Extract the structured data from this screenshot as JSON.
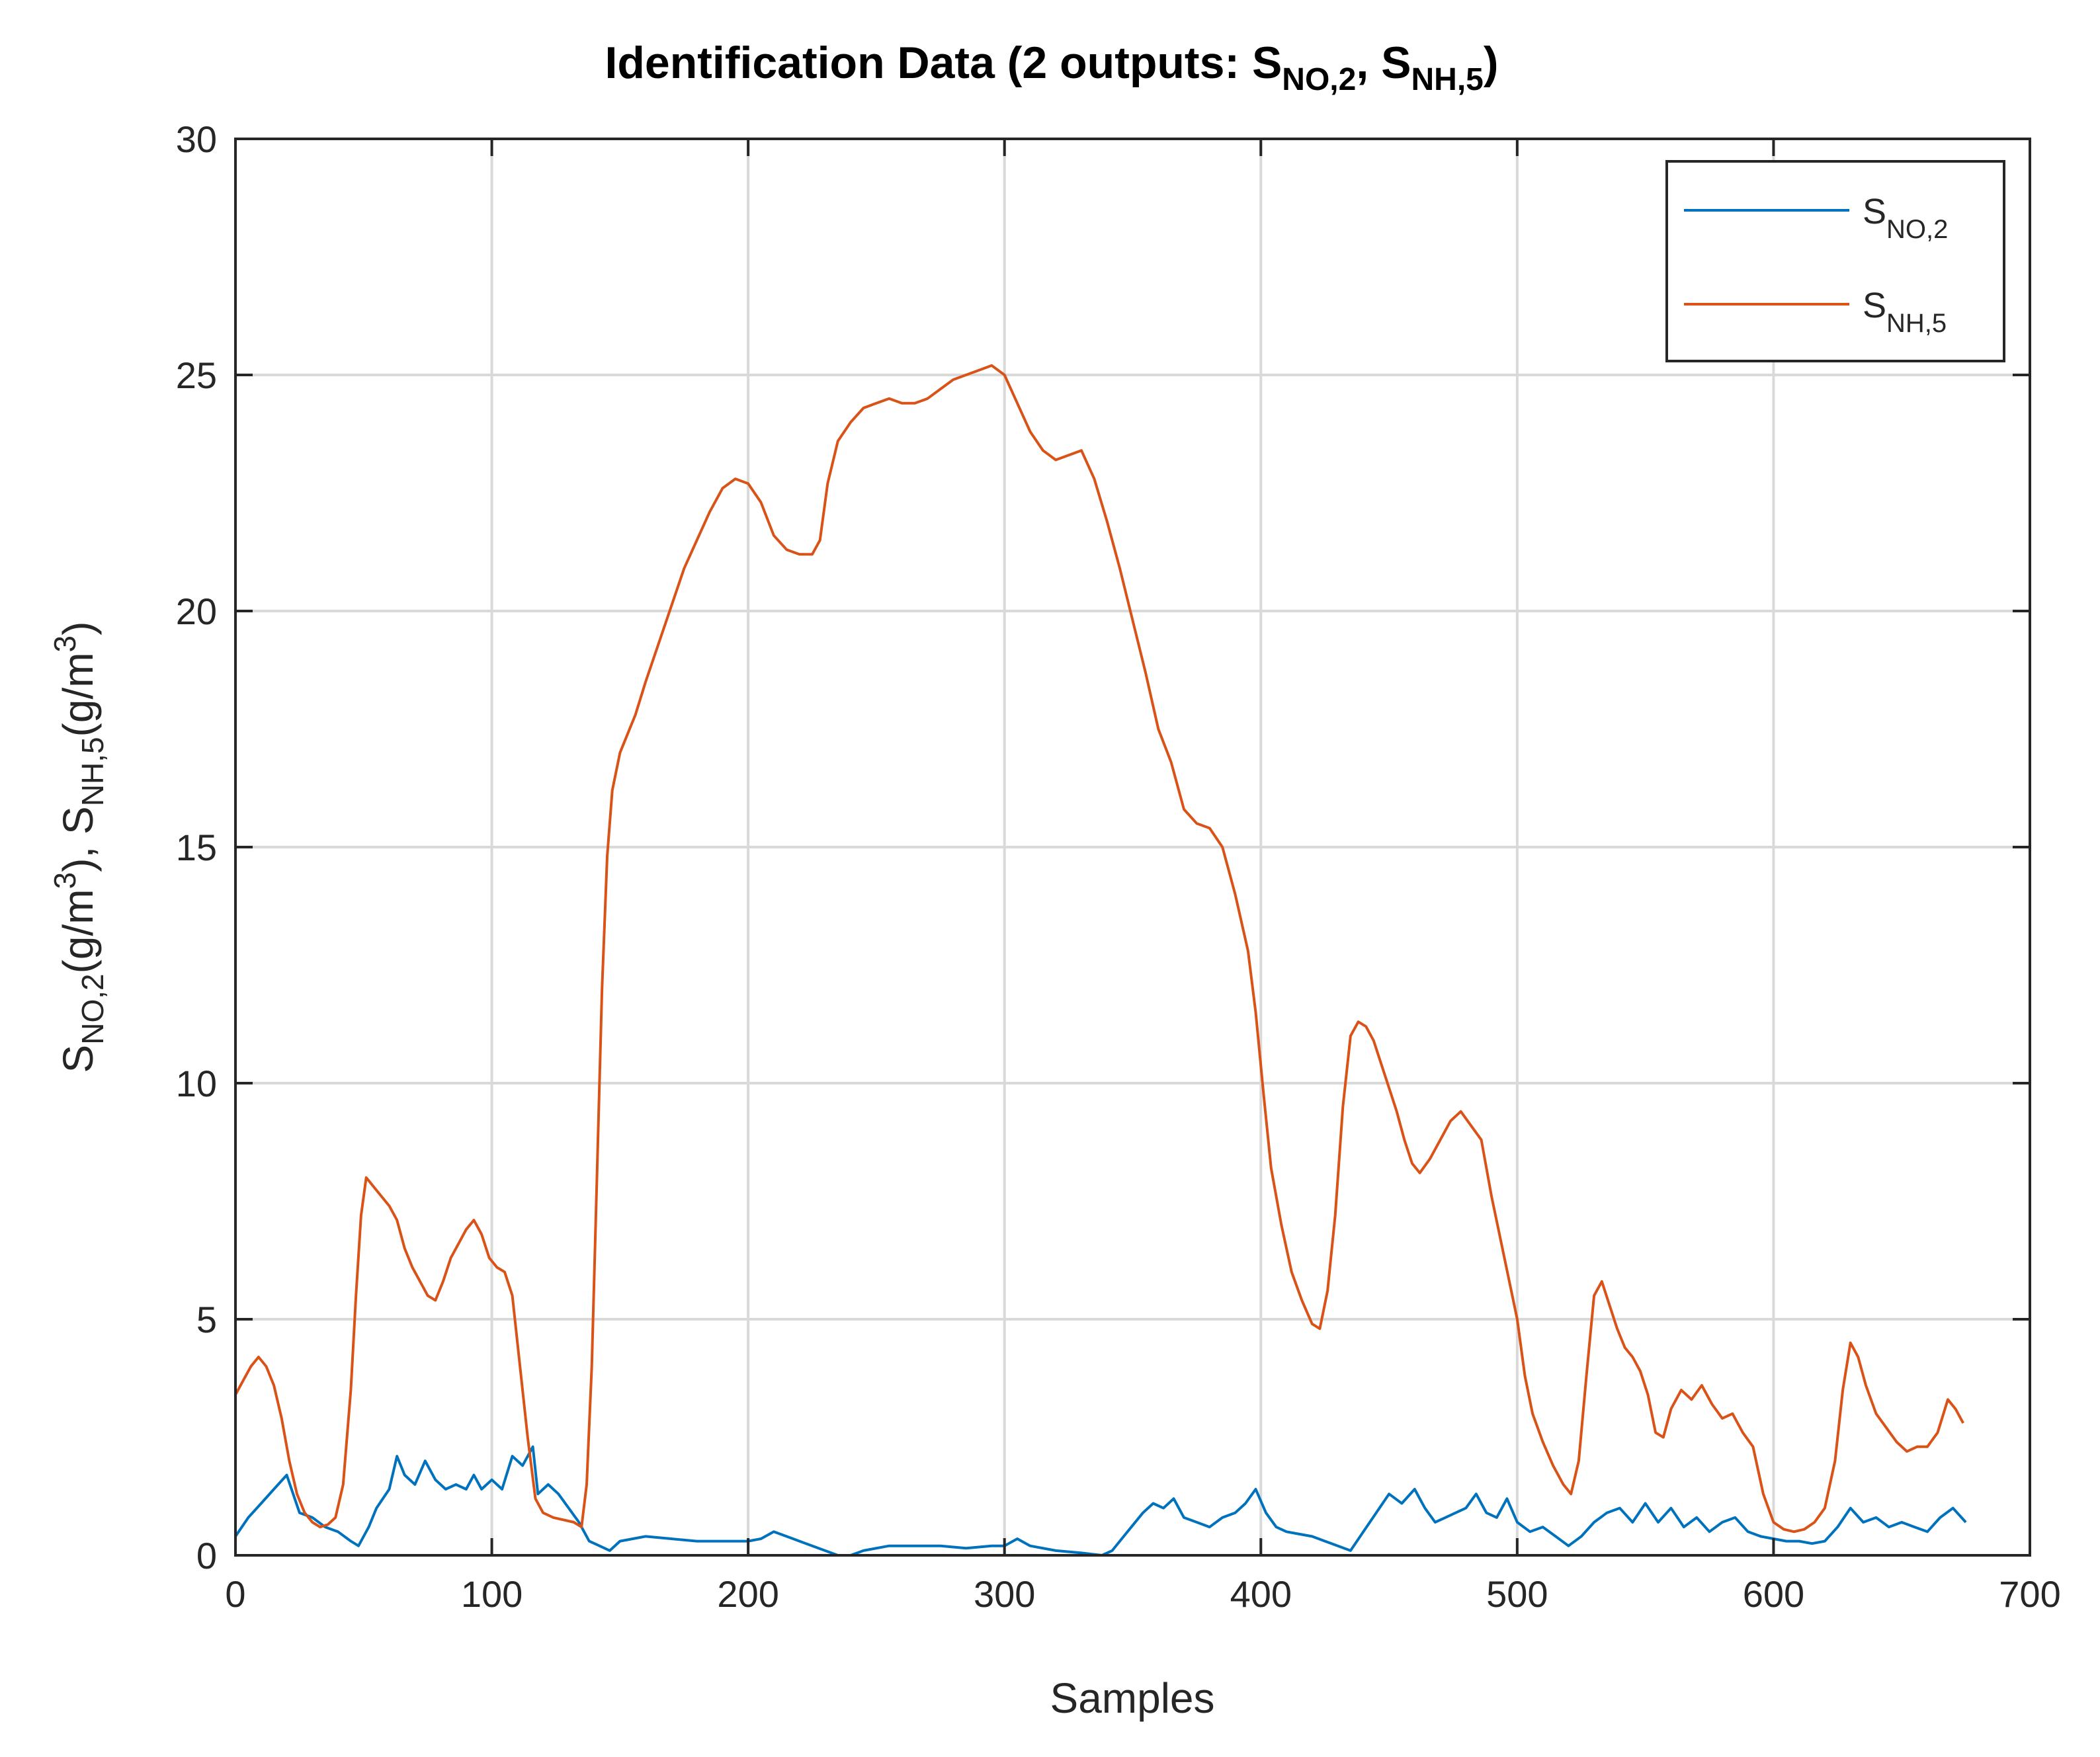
{
  "chart_data": {
    "type": "line",
    "title": {
      "main": "Identification Data (2 outputs: ",
      "s1": "S",
      "s1_sub": "NO,2",
      "sep": ", ",
      "s2": "S",
      "s2_sub": "NH,5",
      "end": ")"
    },
    "xlabel": "Samples",
    "ylabel": {
      "p1": "S",
      "p1_sub": "NO,2",
      "p2": "(g/m",
      "p2_sup": "3",
      "p3": "),  S",
      "p3_sub": "NH,5",
      "p4": "(g/m",
      "p4_sup": "3",
      "p5": ")"
    },
    "xlim": [
      0,
      700
    ],
    "ylim": [
      0,
      30
    ],
    "x_ticks": [
      0,
      100,
      200,
      300,
      400,
      500,
      600,
      700
    ],
    "y_ticks": [
      0,
      5,
      10,
      15,
      20,
      25,
      30
    ],
    "grid": true,
    "legend_position": "top-right",
    "series": [
      {
        "name": "S",
        "name_sub": "NO,2",
        "color": "#0072BD",
        "points": [
          [
            0,
            0.4
          ],
          [
            5,
            0.8
          ],
          [
            10,
            1.1
          ],
          [
            15,
            1.4
          ],
          [
            20,
            1.7
          ],
          [
            25,
            0.9
          ],
          [
            30,
            0.8
          ],
          [
            35,
            0.6
          ],
          [
            40,
            0.5
          ],
          [
            45,
            0.3
          ],
          [
            48,
            0.2
          ],
          [
            52,
            0.6
          ],
          [
            55,
            1.0
          ],
          [
            60,
            1.4
          ],
          [
            63,
            2.1
          ],
          [
            66,
            1.7
          ],
          [
            70,
            1.5
          ],
          [
            74,
            2.0
          ],
          [
            78,
            1.6
          ],
          [
            82,
            1.4
          ],
          [
            86,
            1.5
          ],
          [
            90,
            1.4
          ],
          [
            93,
            1.7
          ],
          [
            96,
            1.4
          ],
          [
            100,
            1.6
          ],
          [
            104,
            1.4
          ],
          [
            108,
            2.1
          ],
          [
            112,
            1.9
          ],
          [
            116,
            2.3
          ],
          [
            118,
            1.3
          ],
          [
            122,
            1.5
          ],
          [
            126,
            1.3
          ],
          [
            130,
            1.0
          ],
          [
            134,
            0.7
          ],
          [
            138,
            0.3
          ],
          [
            142,
            0.2
          ],
          [
            146,
            0.1
          ],
          [
            150,
            0.3
          ],
          [
            160,
            0.4
          ],
          [
            170,
            0.35
          ],
          [
            180,
            0.3
          ],
          [
            190,
            0.3
          ],
          [
            200,
            0.3
          ],
          [
            205,
            0.35
          ],
          [
            210,
            0.5
          ],
          [
            215,
            0.4
          ],
          [
            220,
            0.3
          ],
          [
            225,
            0.2
          ],
          [
            230,
            0.1
          ],
          [
            235,
            0.0
          ],
          [
            240,
            0.0
          ],
          [
            245,
            0.1
          ],
          [
            255,
            0.2
          ],
          [
            265,
            0.2
          ],
          [
            275,
            0.2
          ],
          [
            285,
            0.15
          ],
          [
            295,
            0.2
          ],
          [
            300,
            0.2
          ],
          [
            305,
            0.35
          ],
          [
            310,
            0.2
          ],
          [
            320,
            0.1
          ],
          [
            330,
            0.05
          ],
          [
            338,
            0.0
          ],
          [
            342,
            0.1
          ],
          [
            348,
            0.5
          ],
          [
            354,
            0.9
          ],
          [
            358,
            1.1
          ],
          [
            362,
            1.0
          ],
          [
            366,
            1.2
          ],
          [
            370,
            0.8
          ],
          [
            375,
            0.7
          ],
          [
            380,
            0.6
          ],
          [
            385,
            0.8
          ],
          [
            390,
            0.9
          ],
          [
            394,
            1.1
          ],
          [
            398,
            1.4
          ],
          [
            402,
            0.9
          ],
          [
            406,
            0.6
          ],
          [
            410,
            0.5
          ],
          [
            415,
            0.45
          ],
          [
            420,
            0.4
          ],
          [
            425,
            0.3
          ],
          [
            430,
            0.2
          ],
          [
            435,
            0.1
          ],
          [
            440,
            0.5
          ],
          [
            445,
            0.9
          ],
          [
            450,
            1.3
          ],
          [
            455,
            1.1
          ],
          [
            460,
            1.4
          ],
          [
            464,
            1.0
          ],
          [
            468,
            0.7
          ],
          [
            472,
            0.8
          ],
          [
            476,
            0.9
          ],
          [
            480,
            1.0
          ],
          [
            484,
            1.3
          ],
          [
            488,
            0.9
          ],
          [
            492,
            0.8
          ],
          [
            496,
            1.2
          ],
          [
            500,
            0.7
          ],
          [
            505,
            0.5
          ],
          [
            510,
            0.6
          ],
          [
            515,
            0.4
          ],
          [
            520,
            0.2
          ],
          [
            525,
            0.4
          ],
          [
            530,
            0.7
          ],
          [
            535,
            0.9
          ],
          [
            540,
            1.0
          ],
          [
            545,
            0.7
          ],
          [
            550,
            1.1
          ],
          [
            555,
            0.7
          ],
          [
            560,
            1.0
          ],
          [
            565,
            0.6
          ],
          [
            570,
            0.8
          ],
          [
            575,
            0.5
          ],
          [
            580,
            0.7
          ],
          [
            585,
            0.8
          ],
          [
            590,
            0.5
          ],
          [
            595,
            0.4
          ],
          [
            600,
            0.35
          ],
          [
            605,
            0.3
          ],
          [
            610,
            0.3
          ],
          [
            615,
            0.25
          ],
          [
            620,
            0.3
          ],
          [
            625,
            0.6
          ],
          [
            630,
            1.0
          ],
          [
            635,
            0.7
          ],
          [
            640,
            0.8
          ],
          [
            645,
            0.6
          ],
          [
            650,
            0.7
          ],
          [
            655,
            0.6
          ],
          [
            660,
            0.5
          ],
          [
            665,
            0.8
          ],
          [
            670,
            1.0
          ],
          [
            675,
            0.7
          ]
        ]
      },
      {
        "name": "S",
        "name_sub": "NH,5",
        "color": "#D95319",
        "points": [
          [
            0,
            3.4
          ],
          [
            3,
            3.7
          ],
          [
            6,
            4.0
          ],
          [
            9,
            4.2
          ],
          [
            12,
            4.0
          ],
          [
            15,
            3.6
          ],
          [
            18,
            2.9
          ],
          [
            21,
            2.0
          ],
          [
            24,
            1.3
          ],
          [
            27,
            0.9
          ],
          [
            30,
            0.7
          ],
          [
            33,
            0.6
          ],
          [
            36,
            0.65
          ],
          [
            39,
            0.8
          ],
          [
            42,
            1.5
          ],
          [
            45,
            3.5
          ],
          [
            47,
            5.5
          ],
          [
            49,
            7.2
          ],
          [
            51,
            8.0
          ],
          [
            54,
            7.8
          ],
          [
            57,
            7.6
          ],
          [
            60,
            7.4
          ],
          [
            63,
            7.1
          ],
          [
            66,
            6.5
          ],
          [
            69,
            6.1
          ],
          [
            72,
            5.8
          ],
          [
            75,
            5.5
          ],
          [
            78,
            5.4
          ],
          [
            81,
            5.8
          ],
          [
            84,
            6.3
          ],
          [
            87,
            6.6
          ],
          [
            90,
            6.9
          ],
          [
            93,
            7.1
          ],
          [
            96,
            6.8
          ],
          [
            99,
            6.3
          ],
          [
            102,
            6.1
          ],
          [
            105,
            6.0
          ],
          [
            108,
            5.5
          ],
          [
            111,
            4.0
          ],
          [
            114,
            2.5
          ],
          [
            117,
            1.2
          ],
          [
            120,
            0.9
          ],
          [
            124,
            0.8
          ],
          [
            128,
            0.75
          ],
          [
            132,
            0.7
          ],
          [
            135,
            0.6
          ],
          [
            137,
            1.5
          ],
          [
            139,
            4.0
          ],
          [
            141,
            8.0
          ],
          [
            143,
            12.0
          ],
          [
            145,
            14.8
          ],
          [
            147,
            16.2
          ],
          [
            150,
            17.0
          ],
          [
            153,
            17.4
          ],
          [
            156,
            17.8
          ],
          [
            160,
            18.5
          ],
          [
            165,
            19.3
          ],
          [
            170,
            20.1
          ],
          [
            175,
            20.9
          ],
          [
            180,
            21.5
          ],
          [
            185,
            22.1
          ],
          [
            190,
            22.6
          ],
          [
            195,
            22.8
          ],
          [
            200,
            22.7
          ],
          [
            205,
            22.3
          ],
          [
            210,
            21.6
          ],
          [
            215,
            21.3
          ],
          [
            220,
            21.2
          ],
          [
            225,
            21.2
          ],
          [
            228,
            21.5
          ],
          [
            231,
            22.7
          ],
          [
            235,
            23.6
          ],
          [
            240,
            24.0
          ],
          [
            245,
            24.3
          ],
          [
            250,
            24.4
          ],
          [
            255,
            24.5
          ],
          [
            260,
            24.4
          ],
          [
            265,
            24.4
          ],
          [
            270,
            24.5
          ],
          [
            275,
            24.7
          ],
          [
            280,
            24.9
          ],
          [
            285,
            25.0
          ],
          [
            290,
            25.1
          ],
          [
            295,
            25.2
          ],
          [
            300,
            25.0
          ],
          [
            305,
            24.4
          ],
          [
            310,
            23.8
          ],
          [
            315,
            23.4
          ],
          [
            320,
            23.2
          ],
          [
            325,
            23.3
          ],
          [
            330,
            23.4
          ],
          [
            335,
            22.8
          ],
          [
            340,
            21.9
          ],
          [
            345,
            20.9
          ],
          [
            350,
            19.8
          ],
          [
            355,
            18.7
          ],
          [
            360,
            17.5
          ],
          [
            365,
            16.8
          ],
          [
            370,
            15.8
          ],
          [
            375,
            15.5
          ],
          [
            380,
            15.4
          ],
          [
            385,
            15.0
          ],
          [
            390,
            14.0
          ],
          [
            395,
            12.8
          ],
          [
            398,
            11.5
          ],
          [
            401,
            9.8
          ],
          [
            404,
            8.2
          ],
          [
            408,
            7.0
          ],
          [
            412,
            6.0
          ],
          [
            416,
            5.4
          ],
          [
            420,
            4.9
          ],
          [
            423,
            4.8
          ],
          [
            426,
            5.6
          ],
          [
            429,
            7.2
          ],
          [
            432,
            9.5
          ],
          [
            435,
            11.0
          ],
          [
            438,
            11.3
          ],
          [
            441,
            11.2
          ],
          [
            444,
            10.9
          ],
          [
            447,
            10.4
          ],
          [
            450,
            9.9
          ],
          [
            453,
            9.4
          ],
          [
            456,
            8.8
          ],
          [
            459,
            8.3
          ],
          [
            462,
            8.1
          ],
          [
            466,
            8.4
          ],
          [
            470,
            8.8
          ],
          [
            474,
            9.2
          ],
          [
            478,
            9.4
          ],
          [
            482,
            9.1
          ],
          [
            486,
            8.8
          ],
          [
            490,
            7.6
          ],
          [
            495,
            6.3
          ],
          [
            500,
            5.0
          ],
          [
            503,
            3.8
          ],
          [
            506,
            3.0
          ],
          [
            510,
            2.4
          ],
          [
            514,
            1.9
          ],
          [
            518,
            1.5
          ],
          [
            521,
            1.3
          ],
          [
            524,
            2.0
          ],
          [
            527,
            3.8
          ],
          [
            530,
            5.5
          ],
          [
            533,
            5.8
          ],
          [
            536,
            5.3
          ],
          [
            539,
            4.8
          ],
          [
            542,
            4.4
          ],
          [
            545,
            4.2
          ],
          [
            548,
            3.9
          ],
          [
            551,
            3.4
          ],
          [
            554,
            2.6
          ],
          [
            557,
            2.5
          ],
          [
            560,
            3.1
          ],
          [
            564,
            3.5
          ],
          [
            568,
            3.3
          ],
          [
            572,
            3.6
          ],
          [
            576,
            3.2
          ],
          [
            580,
            2.9
          ],
          [
            584,
            3.0
          ],
          [
            588,
            2.6
          ],
          [
            592,
            2.3
          ],
          [
            596,
            1.3
          ],
          [
            600,
            0.7
          ],
          [
            604,
            0.55
          ],
          [
            608,
            0.5
          ],
          [
            612,
            0.55
          ],
          [
            616,
            0.7
          ],
          [
            620,
            1.0
          ],
          [
            624,
            2.0
          ],
          [
            627,
            3.5
          ],
          [
            630,
            4.5
          ],
          [
            633,
            4.2
          ],
          [
            636,
            3.6
          ],
          [
            640,
            3.0
          ],
          [
            644,
            2.7
          ],
          [
            648,
            2.4
          ],
          [
            652,
            2.2
          ],
          [
            656,
            2.3
          ],
          [
            660,
            2.3
          ],
          [
            664,
            2.6
          ],
          [
            668,
            3.3
          ],
          [
            671,
            3.1
          ],
          [
            674,
            2.8
          ]
        ]
      }
    ]
  }
}
